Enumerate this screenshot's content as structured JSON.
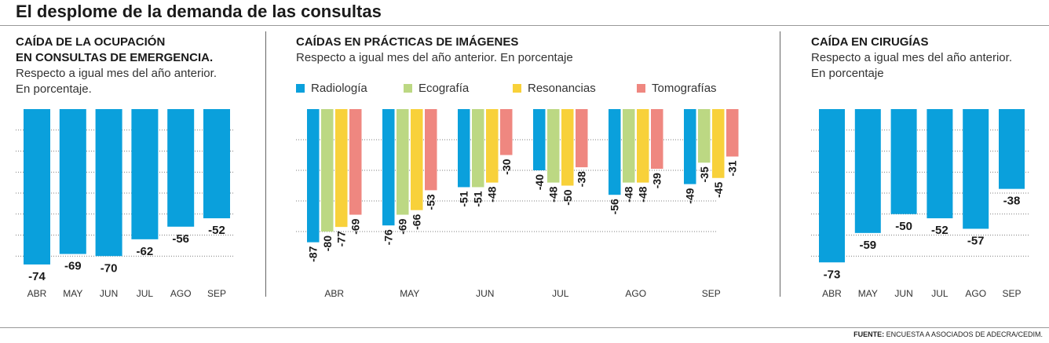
{
  "title": "El desplome de la demanda de las consultas",
  "footer": {
    "source_label": "FUENTE:",
    "source_text": "ENCUESTA A ASOCIADOS DE ADECRA/CEDIM."
  },
  "colors": {
    "radiologia": "#0aa0dc",
    "ecografia": "#bcd883",
    "resonancias": "#f8d13a",
    "tomografias": "#ef8780",
    "gridline": "#555555"
  },
  "panels": [
    {
      "title_line1": "CAÍDA DE LA OCUPACIÓN",
      "title_line2": "EN CONSULTAS DE EMERGENCIA.",
      "subtitle_line1": "Respecto a igual mes del año anterior.",
      "subtitle_line2": "En porcentaje."
    },
    {
      "title_line1": "CAÍDAS EN PRÁCTICAS DE IMÁGENES",
      "subtitle_line1": "Respecto a igual mes del año anterior. En porcentaje"
    },
    {
      "title_line1": "CAÍDA EN CIRUGÍAS",
      "subtitle_line1": "Respecto a igual mes del año anterior.",
      "subtitle_line2": "En porcentaje"
    }
  ],
  "chart_data": [
    {
      "type": "bar",
      "categories": [
        "ABR",
        "MAY",
        "JUN",
        "JUL",
        "AGO",
        "SEP"
      ],
      "values": [
        -74,
        -69,
        -70,
        -62,
        -56,
        -52
      ],
      "ylim": [
        -80,
        0
      ],
      "grid": true,
      "color": "#0aa0dc"
    },
    {
      "type": "bar",
      "categories": [
        "ABR",
        "MAY",
        "JUN",
        "JUL",
        "AGO",
        "SEP"
      ],
      "legend_position": "top",
      "ylim": [
        -100,
        0
      ],
      "grid": true,
      "series": [
        {
          "name": "Radiología",
          "color": "#0aa0dc",
          "values": [
            -87,
            -76,
            -51,
            -40,
            -56,
            -49
          ]
        },
        {
          "name": "Ecografía",
          "color": "#bcd883",
          "values": [
            -80,
            -69,
            -51,
            -48,
            -48,
            -35
          ]
        },
        {
          "name": "Resonancias",
          "color": "#f8d13a",
          "values": [
            -77,
            -66,
            -48,
            -50,
            -48,
            -45
          ]
        },
        {
          "name": "Tomografías",
          "color": "#ef8780",
          "values": [
            -69,
            -53,
            -30,
            -38,
            -39,
            -31
          ]
        }
      ]
    },
    {
      "type": "bar",
      "categories": [
        "ABR",
        "MAY",
        "JUN",
        "JUL",
        "AGO",
        "SEP"
      ],
      "values": [
        -73,
        -59,
        -50,
        -52,
        -57,
        -38
      ],
      "ylim": [
        -80,
        0
      ],
      "grid": true,
      "color": "#0aa0dc"
    }
  ]
}
